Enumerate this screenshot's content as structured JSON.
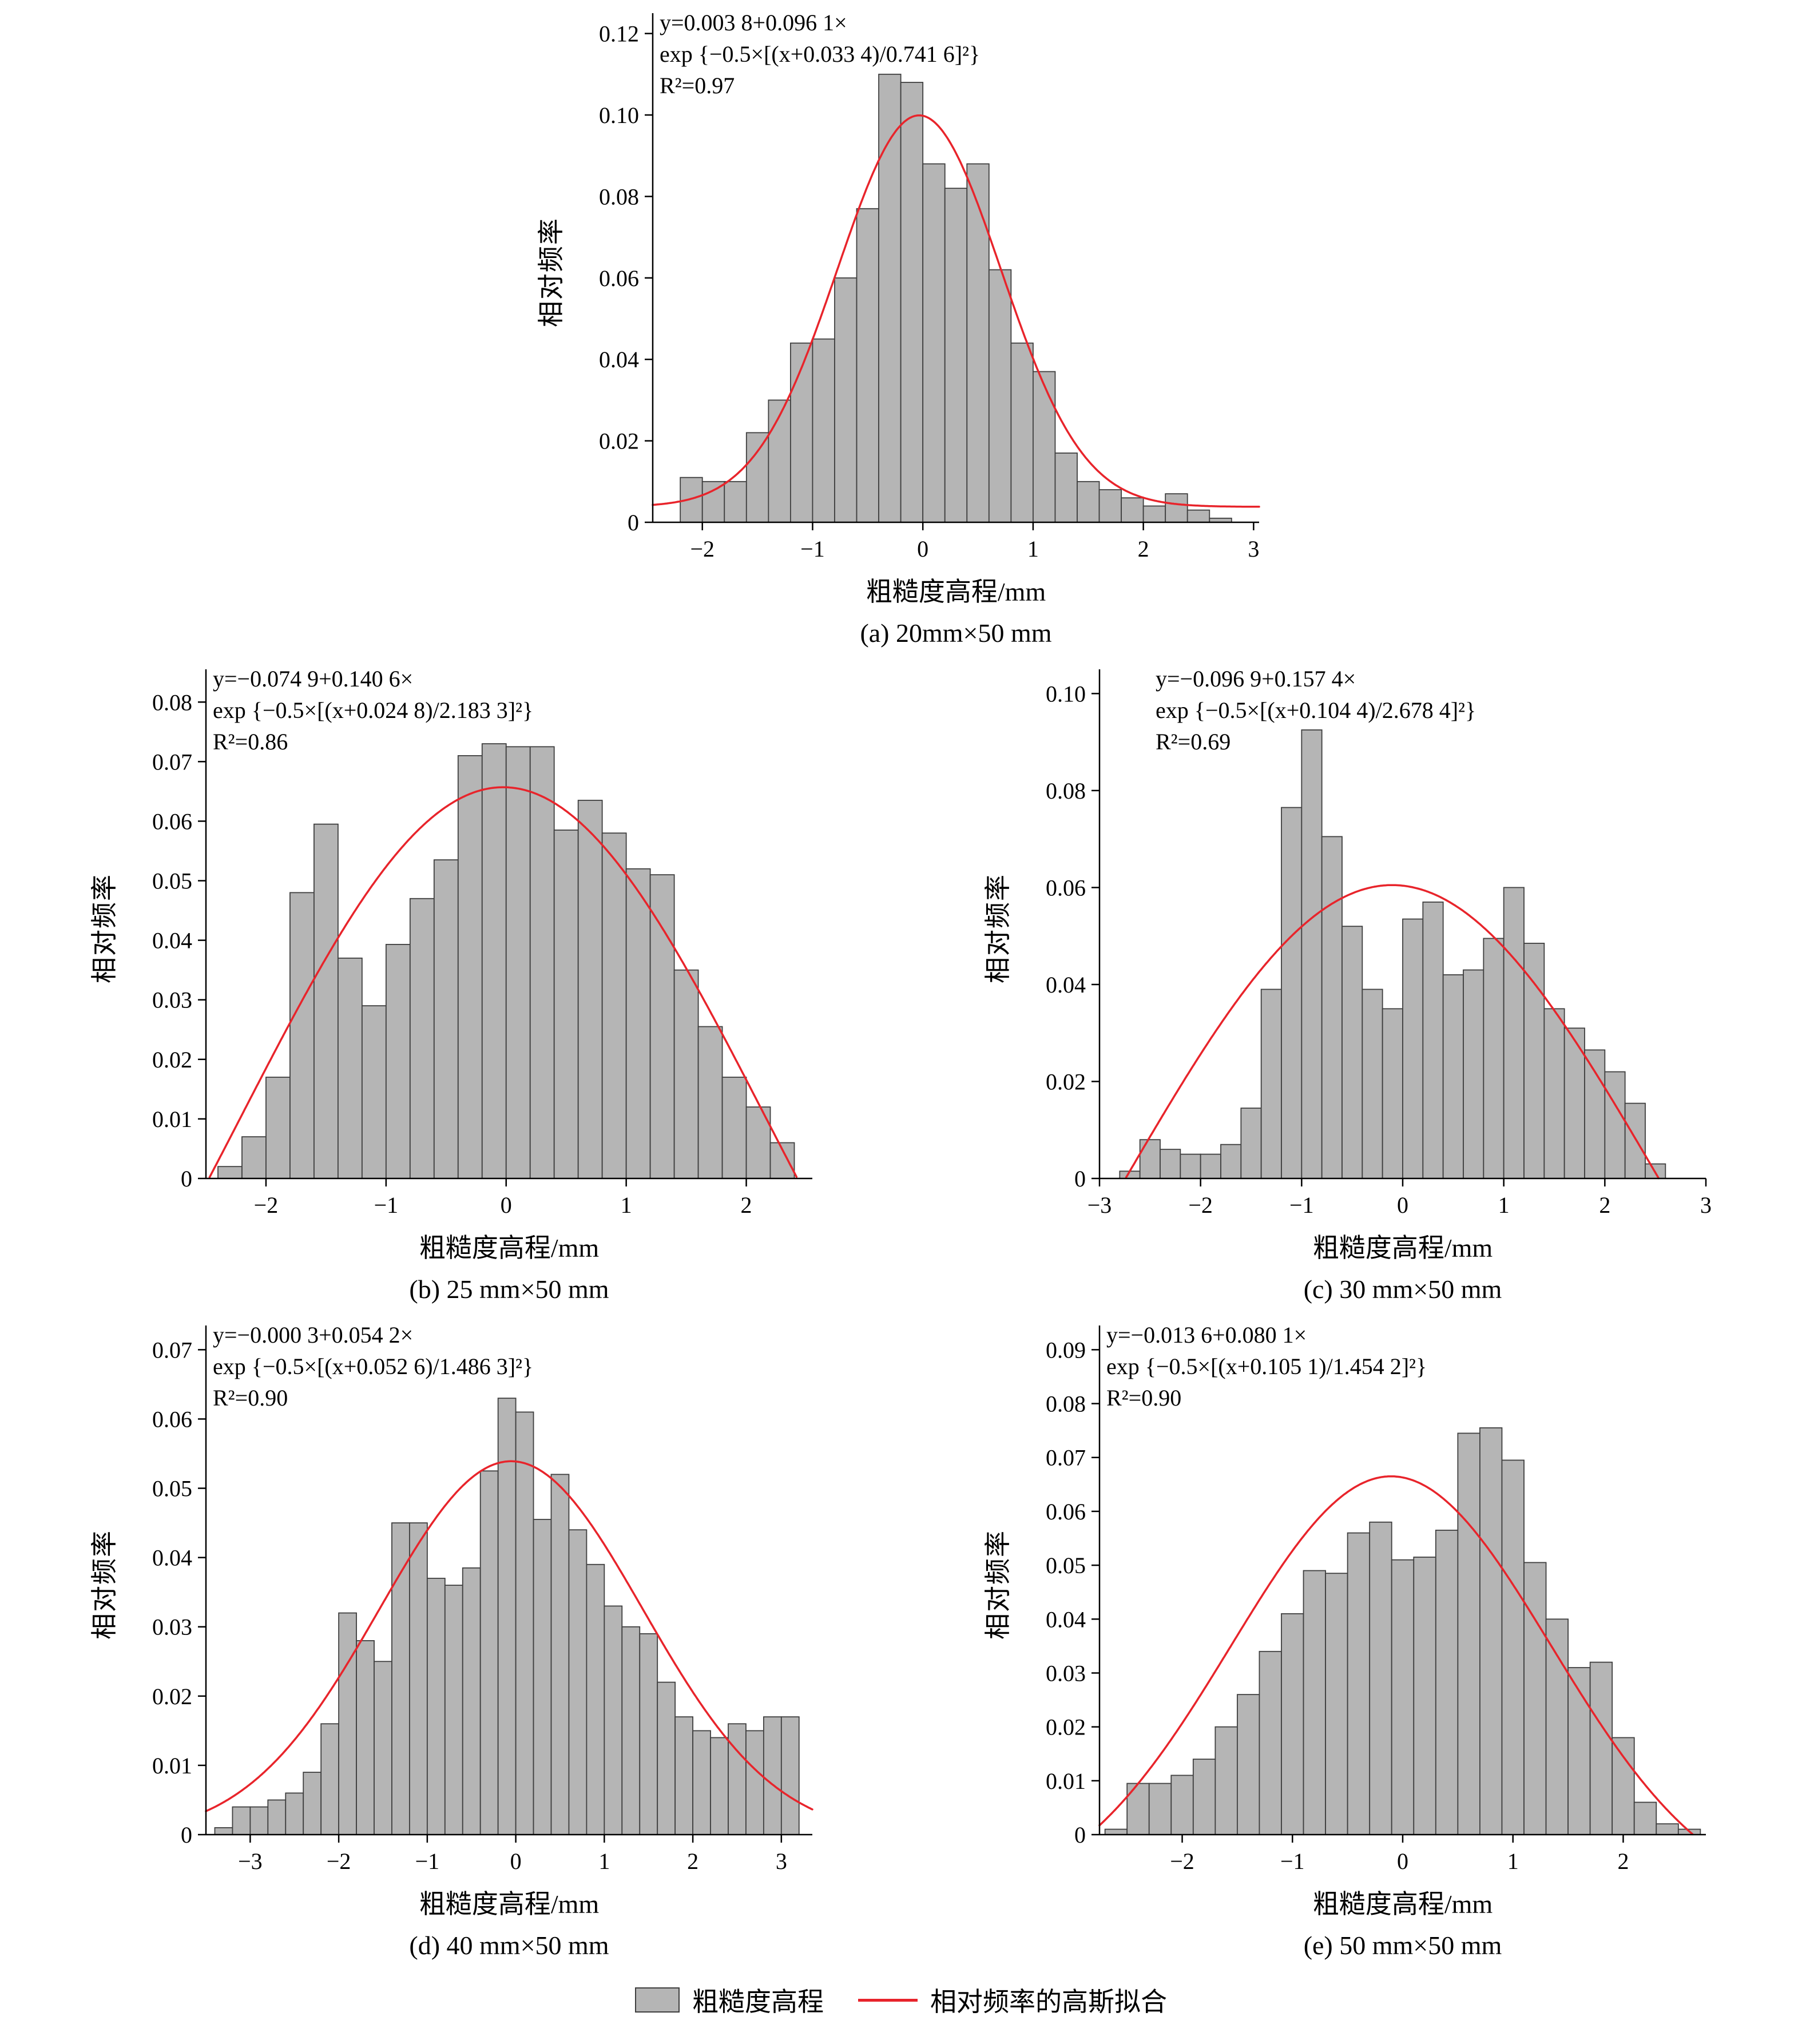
{
  "legend": {
    "histogram_label": "粗糙度高程",
    "fit_label": "相对频率的高斯拟合",
    "bar_color": "#b5b5b5",
    "bar_stroke": "#3f3f3f",
    "line_color": "#e8242b",
    "axis_color": "#000000"
  },
  "chart_data": [
    {
      "type": "bar",
      "subtype": "histogram-with-gaussian-fit",
      "caption": "(a) 20mm×50 mm",
      "xlabel": "粗糙度高程/mm",
      "ylabel": "相对频率",
      "equation_lines": [
        "y=0.003 8+0.096 1×",
        "exp {−0.5×[(x+0.033 4)/0.741 6]²}",
        "R²=0.97"
      ],
      "gaussian_fit": {
        "y0": 0.0038,
        "A": 0.0961,
        "xc": -0.0334,
        "w": 0.7416,
        "r2": 0.97
      },
      "xlim": [
        -2.45,
        3.05
      ],
      "ylim": [
        0,
        0.125
      ],
      "xticks": [
        -2,
        -1,
        0,
        1,
        2,
        3
      ],
      "yticks": [
        0,
        0.02,
        0.04,
        0.06,
        0.08,
        0.1,
        0.12
      ],
      "bin_width": 0.2,
      "x": [
        -2.1,
        -1.9,
        -1.7,
        -1.5,
        -1.3,
        -1.1,
        -0.9,
        -0.7,
        -0.5,
        -0.3,
        -0.1,
        0.1,
        0.3,
        0.5,
        0.7,
        0.9,
        1.1,
        1.3,
        1.5,
        1.7,
        1.9,
        2.1,
        2.3,
        2.5,
        2.7
      ],
      "values": [
        0.011,
        0.01,
        0.01,
        0.022,
        0.03,
        0.044,
        0.045,
        0.06,
        0.077,
        0.11,
        0.108,
        0.088,
        0.082,
        0.088,
        0.062,
        0.044,
        0.037,
        0.017,
        0.01,
        0.008,
        0.006,
        0.004,
        0.007,
        0.003,
        0.001
      ]
    },
    {
      "type": "bar",
      "subtype": "histogram-with-gaussian-fit",
      "caption": "(b) 25 mm×50 mm",
      "xlabel": "粗糙度高程/mm",
      "ylabel": "相对频率",
      "equation_lines": [
        "y=−0.074 9+0.140 6×",
        "exp {−0.5×[(x+0.024 8)/2.183 3]²}",
        "R²=0.86"
      ],
      "gaussian_fit": {
        "y0": -0.0749,
        "A": 0.1406,
        "xc": -0.0248,
        "w": 2.1833,
        "r2": 0.86
      },
      "xlim": [
        -2.5,
        2.55
      ],
      "ylim": [
        0,
        0.0855
      ],
      "xticks": [
        -2,
        -1,
        0,
        1,
        2
      ],
      "yticks": [
        0,
        0.01,
        0.02,
        0.03,
        0.04,
        0.05,
        0.06,
        0.07,
        0.08
      ],
      "bin_width": 0.2,
      "x": [
        -2.3,
        -2.1,
        -1.9,
        -1.7,
        -1.5,
        -1.3,
        -1.1,
        -0.9,
        -0.7,
        -0.5,
        -0.3,
        -0.1,
        0.1,
        0.3,
        0.5,
        0.7,
        0.9,
        1.1,
        1.3,
        1.5,
        1.7,
        1.9,
        2.1,
        2.3
      ],
      "values": [
        0.002,
        0.007,
        0.017,
        0.048,
        0.0595,
        0.037,
        0.029,
        0.0393,
        0.047,
        0.0535,
        0.071,
        0.073,
        0.0725,
        0.0725,
        0.0585,
        0.0635,
        0.058,
        0.052,
        0.051,
        0.035,
        0.0255,
        0.017,
        0.012,
        0.006
      ]
    },
    {
      "type": "bar",
      "subtype": "histogram-with-gaussian-fit",
      "caption": "(c) 30 mm×50 mm",
      "xlabel": "粗糙度高程/mm",
      "ylabel": "相对频率",
      "equation_lines": [
        "y=−0.096 9+0.157 4×",
        "exp {−0.5×[(x+0.104 4)/2.678 4]²}",
        "R²=0.69"
      ],
      "gaussian_fit": {
        "y0": -0.0969,
        "A": 0.1574,
        "xc": -0.1044,
        "w": 2.6784,
        "r2": 0.69
      },
      "xlim": [
        -3.0,
        3.0
      ],
      "ylim": [
        0,
        0.105
      ],
      "xticks": [
        -3,
        -2,
        -1,
        0,
        1,
        2,
        3
      ],
      "yticks": [
        0,
        0.02,
        0.04,
        0.06,
        0.08,
        0.1
      ],
      "bin_width": 0.2,
      "x": [
        -2.7,
        -2.5,
        -2.3,
        -2.1,
        -1.9,
        -1.7,
        -1.5,
        -1.3,
        -1.1,
        -0.9,
        -0.7,
        -0.5,
        -0.3,
        -0.1,
        0.1,
        0.3,
        0.5,
        0.7,
        0.9,
        1.1,
        1.3,
        1.5,
        1.7,
        1.9,
        2.1,
        2.3,
        2.5
      ],
      "values": [
        0.0015,
        0.008,
        0.006,
        0.005,
        0.005,
        0.007,
        0.0145,
        0.039,
        0.0765,
        0.0925,
        0.0705,
        0.052,
        0.039,
        0.035,
        0.0535,
        0.057,
        0.042,
        0.043,
        0.0495,
        0.06,
        0.0485,
        0.035,
        0.031,
        0.0265,
        0.022,
        0.0155,
        0.003
      ]
    },
    {
      "type": "bar",
      "subtype": "histogram-with-gaussian-fit",
      "caption": "(d) 40 mm×50 mm",
      "xlabel": "粗糙度高程/mm",
      "ylabel": "相对频率",
      "equation_lines": [
        "y=−0.000 3+0.054 2×",
        "exp {−0.5×[(x+0.052 6)/1.486 3]²}",
        "R²=0.90"
      ],
      "gaussian_fit": {
        "y0": -0.0003,
        "A": 0.0542,
        "xc": -0.0526,
        "w": 1.4863,
        "r2": 0.9
      },
      "xlim": [
        -3.5,
        3.35
      ],
      "ylim": [
        0,
        0.0735
      ],
      "xticks": [
        -3,
        -2,
        -1,
        0,
        1,
        2,
        3
      ],
      "yticks": [
        0,
        0.01,
        0.02,
        0.03,
        0.04,
        0.05,
        0.06,
        0.07
      ],
      "bin_width": 0.2,
      "x": [
        -3.3,
        -3.1,
        -2.9,
        -2.7,
        -2.5,
        -2.3,
        -2.1,
        -1.9,
        -1.7,
        -1.5,
        -1.3,
        -1.1,
        -0.9,
        -0.7,
        -0.5,
        -0.3,
        -0.1,
        0.1,
        0.3,
        0.5,
        0.7,
        0.9,
        1.1,
        1.3,
        1.5,
        1.7,
        1.9,
        2.1,
        2.3,
        2.5,
        2.7,
        2.9,
        3.1
      ],
      "values": [
        0.001,
        0.004,
        0.004,
        0.005,
        0.006,
        0.009,
        0.016,
        0.032,
        0.028,
        0.025,
        0.045,
        0.045,
        0.037,
        0.036,
        0.0385,
        0.0525,
        0.063,
        0.061,
        0.0455,
        0.052,
        0.044,
        0.039,
        0.033,
        0.03,
        0.029,
        0.022,
        0.017,
        0.015,
        0.014,
        0.016,
        0.015,
        0.017,
        0.017
      ]
    },
    {
      "type": "bar",
      "subtype": "histogram-with-gaussian-fit",
      "caption": "(e) 50 mm×50 mm",
      "xlabel": "粗糙度高程/mm",
      "ylabel": "相对频率",
      "equation_lines": [
        "y=−0.013 6+0.080 1×",
        "exp {−0.5×[(x+0.105 1)/1.454 2]²}",
        "R²=0.90"
      ],
      "gaussian_fit": {
        "y0": -0.0136,
        "A": 0.0801,
        "xc": -0.1051,
        "w": 1.4542,
        "r2": 0.9
      },
      "xlim": [
        -2.75,
        2.75
      ],
      "ylim": [
        0,
        0.0945
      ],
      "xticks": [
        -2,
        -1,
        0,
        1,
        2
      ],
      "yticks": [
        0,
        0.01,
        0.02,
        0.03,
        0.04,
        0.05,
        0.06,
        0.07,
        0.08,
        0.09
      ],
      "bin_width": 0.2,
      "x": [
        -2.6,
        -2.4,
        -2.2,
        -2.0,
        -1.8,
        -1.6,
        -1.4,
        -1.2,
        -1.0,
        -0.8,
        -0.6,
        -0.4,
        -0.2,
        0.0,
        0.2,
        0.4,
        0.6,
        0.8,
        1.0,
        1.2,
        1.4,
        1.6,
        1.8,
        2.0,
        2.2,
        2.4,
        2.6
      ],
      "values": [
        0.001,
        0.0095,
        0.0095,
        0.011,
        0.014,
        0.02,
        0.026,
        0.034,
        0.041,
        0.049,
        0.0485,
        0.056,
        0.058,
        0.051,
        0.0515,
        0.0565,
        0.0745,
        0.0755,
        0.0695,
        0.0505,
        0.04,
        0.031,
        0.032,
        0.018,
        0.006,
        0.002,
        0.001
      ]
    }
  ]
}
